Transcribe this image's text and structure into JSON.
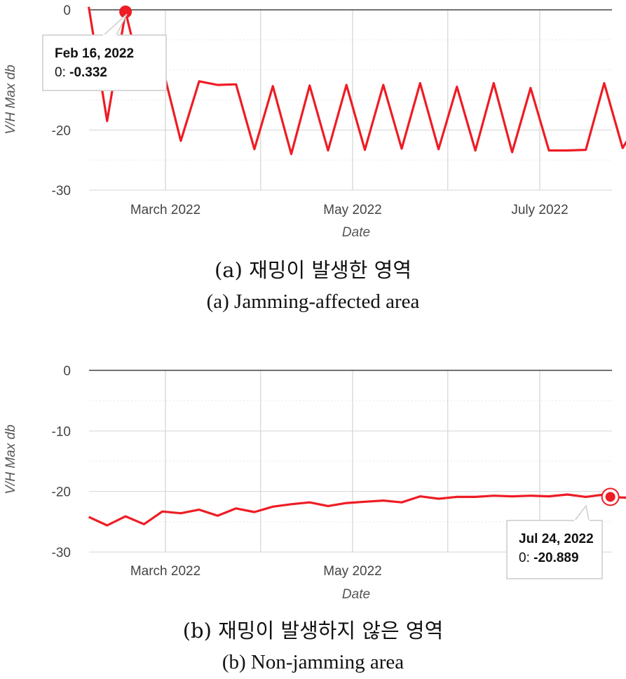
{
  "chart_data": [
    {
      "type": "line",
      "xlabel": "Date",
      "ylabel": "V/H Max db",
      "ylim": [
        -30,
        0
      ],
      "yticks": [
        "0",
        "-20",
        "-30"
      ],
      "xticks": [
        "March 2022",
        "May 2022",
        "July 2022"
      ],
      "series_color": "#ee1c24",
      "series": [
        {
          "name": "0",
          "x": [
            "2022-02-04",
            "2022-02-10",
            "2022-02-16",
            "2022-02-22",
            "2022-02-28",
            "2022-03-06",
            "2022-03-12",
            "2022-03-18",
            "2022-03-24",
            "2022-03-30",
            "2022-04-05",
            "2022-04-11",
            "2022-04-17",
            "2022-04-23",
            "2022-04-29",
            "2022-05-05",
            "2022-05-11",
            "2022-05-17",
            "2022-05-23",
            "2022-05-29",
            "2022-06-04",
            "2022-06-10",
            "2022-06-16",
            "2022-06-22",
            "2022-06-28",
            "2022-07-04",
            "2022-07-10",
            "2022-07-16",
            "2022-07-22",
            "2022-07-28",
            "2022-08-03"
          ],
          "values": [
            0.5,
            -18.5,
            -0.332,
            -13,
            -9.5,
            -21.8,
            -11.9,
            -12.5,
            -12.4,
            -23.2,
            -12.7,
            -24.0,
            -12.6,
            -23.4,
            -12.5,
            -23.3,
            -12.5,
            -23.1,
            -12.2,
            -23.2,
            -12.8,
            -23.4,
            -12.2,
            -23.7,
            -13.0,
            -23.4,
            -23.4,
            -23.3,
            -12.2,
            -23.0,
            -18
          ]
        }
      ],
      "tooltip": {
        "date": "Feb 16, 2022",
        "series_label": "0:",
        "value": "-0.332"
      }
    },
    {
      "type": "line",
      "xlabel": "Date",
      "ylabel": "V/H Max db",
      "ylim": [
        -30,
        0
      ],
      "yticks": [
        "0",
        "-10",
        "-20",
        "-30"
      ],
      "xticks": [
        "March 2022",
        "May 2022",
        "July 2022"
      ],
      "series_color": "#ee1c24",
      "series": [
        {
          "name": "0",
          "x": [
            "2022-02-04",
            "2022-02-10",
            "2022-02-16",
            "2022-02-22",
            "2022-02-28",
            "2022-03-06",
            "2022-03-12",
            "2022-03-18",
            "2022-03-24",
            "2022-03-30",
            "2022-04-05",
            "2022-04-11",
            "2022-04-17",
            "2022-04-23",
            "2022-04-29",
            "2022-05-05",
            "2022-05-11",
            "2022-05-17",
            "2022-05-23",
            "2022-05-29",
            "2022-06-04",
            "2022-06-10",
            "2022-06-16",
            "2022-06-22",
            "2022-06-28",
            "2022-07-04",
            "2022-07-10",
            "2022-07-16",
            "2022-07-22",
            "2022-07-24",
            "2022-07-28",
            "2022-08-03"
          ],
          "values": [
            -24.2,
            -25.6,
            -24.1,
            -25.4,
            -23.3,
            -23.6,
            -23.0,
            -24.0,
            -22.8,
            -23.4,
            -22.5,
            -22.1,
            -21.8,
            -22.4,
            -21.9,
            -21.7,
            -21.5,
            -21.8,
            -20.8,
            -21.2,
            -20.9,
            -20.9,
            -20.7,
            -20.8,
            -20.7,
            -20.8,
            -20.5,
            -20.9,
            -20.5,
            -20.889,
            -21.0,
            -21.1
          ]
        }
      ],
      "tooltip": {
        "date": "Jul 24, 2022",
        "series_label": "0:",
        "value": "-20.889"
      }
    }
  ],
  "captions": {
    "a_ko": "(a)  재밍이  발생한  영역",
    "a_en": "(a)  Jamming-affected  area",
    "b_ko": "(b)  재밍이  발생하지  않은  영역",
    "b_en": "(b)  Non-jamming  area"
  }
}
